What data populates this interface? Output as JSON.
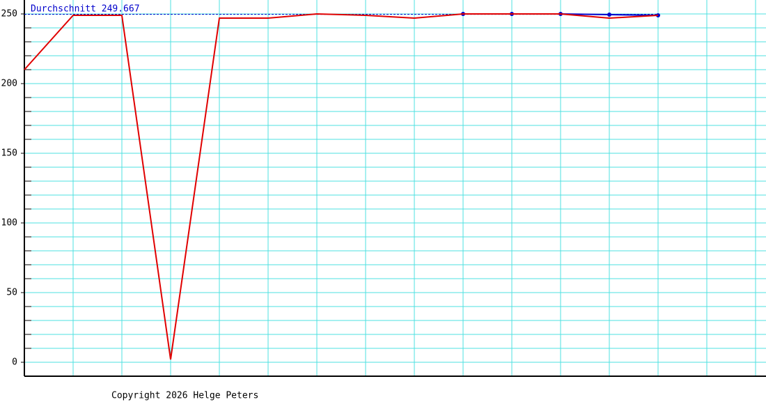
{
  "chart_data": {
    "type": "line",
    "x": [
      0,
      1,
      2,
      3,
      4,
      5,
      6,
      7,
      8,
      9,
      10,
      11,
      12,
      13
    ],
    "xlim": [
      0,
      15
    ],
    "xticks": [
      0,
      1,
      2,
      3,
      4,
      5,
      6,
      7,
      8,
      9,
      10,
      11,
      12,
      13,
      14,
      15
    ],
    "ylim": [
      -10,
      260
    ],
    "yticks": [
      0,
      50,
      100,
      150,
      200,
      250
    ],
    "minor_yticks": [
      10,
      20,
      30,
      40,
      60,
      70,
      80,
      90,
      110,
      120,
      130,
      140,
      160,
      170,
      180,
      190,
      210,
      220,
      230,
      240
    ],
    "grid": true,
    "grid_color": "#4ee0e0",
    "series": [
      {
        "color": "#e00000",
        "values": [
          210,
          249,
          249,
          2,
          247,
          247,
          250,
          249,
          247,
          250,
          250,
          250,
          247,
          249
        ]
      },
      {
        "color": "#0000cc",
        "values": [
          null,
          null,
          null,
          null,
          null,
          null,
          null,
          null,
          null,
          250,
          250,
          250,
          249.5,
          249
        ]
      }
    ],
    "average": {
      "value": 249.667,
      "label": "Durchschnitt 249.667",
      "color": "#0000cc"
    },
    "footer": "Copyright 2026 Helge Peters"
  }
}
